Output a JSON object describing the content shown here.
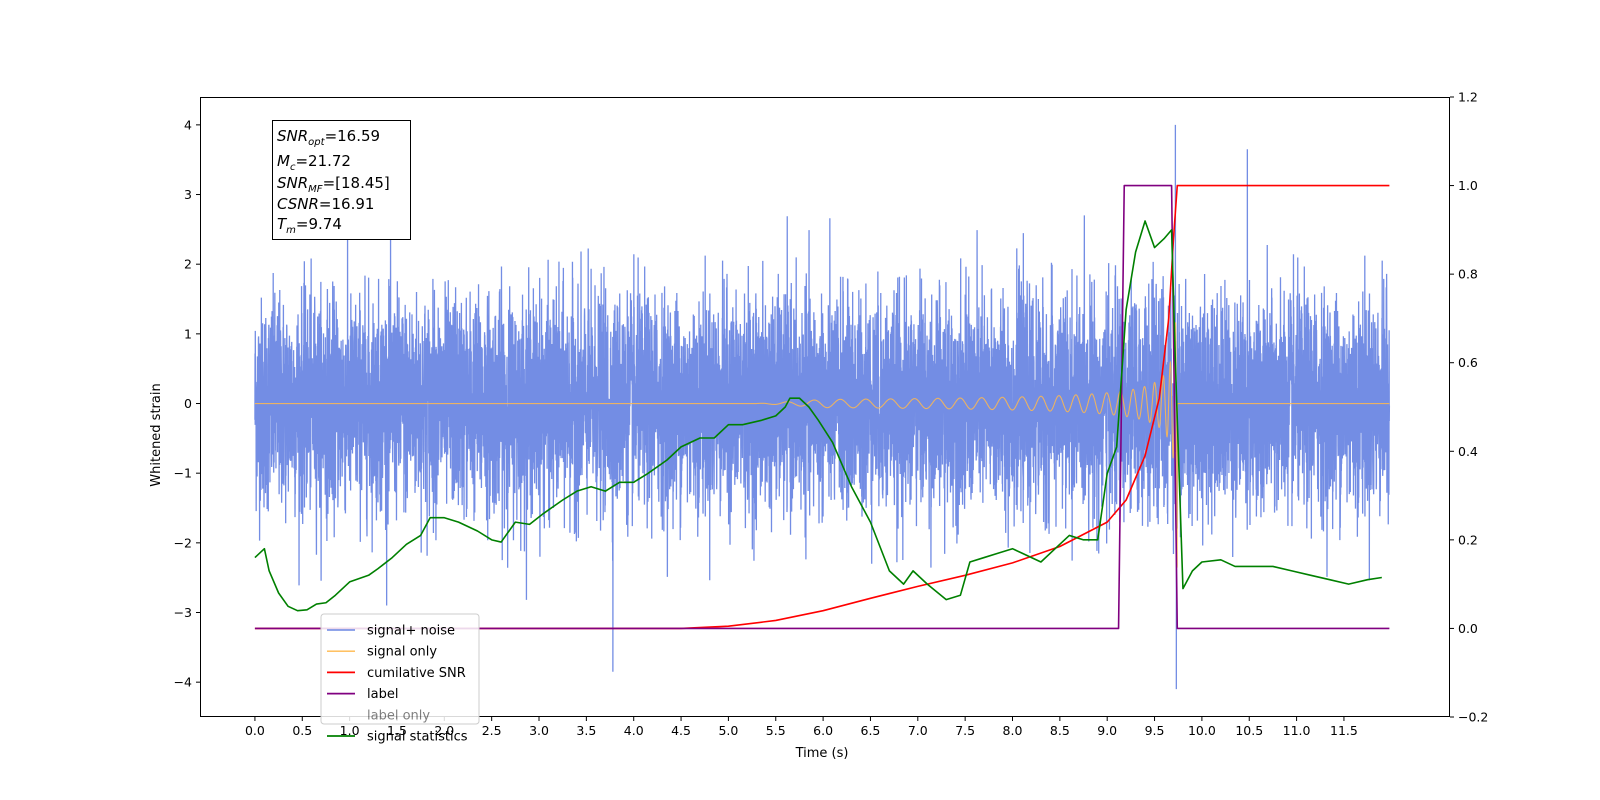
{
  "chart_data": {
    "type": "line",
    "xlabel": "Time (s)",
    "ylabel": "Whitened strain",
    "xlim": [
      -0.58,
      12.62
    ],
    "ylim": [
      -4.5,
      4.4
    ],
    "ylim_right": [
      -0.2,
      1.2
    ],
    "x_ticks": [
      0.0,
      0.5,
      1.0,
      1.5,
      2.0,
      2.5,
      3.0,
      3.5,
      4.0,
      4.5,
      5.0,
      5.5,
      6.0,
      6.5,
      7.0,
      7.5,
      8.0,
      8.5,
      9.0,
      9.5,
      10.0,
      10.5,
      11.0,
      11.5
    ],
    "x_tick_labels": [
      "0.0",
      "0.5",
      "1.0",
      "1.5",
      "2.0",
      "2.5",
      "3.0",
      "3.5",
      "4.0",
      "4.5",
      "5.0",
      "5.5",
      "6.0",
      "6.5",
      "7.0",
      "7.5",
      "8.0",
      "8.5",
      "9.0",
      "9.5",
      "10.0",
      "10.5",
      "11.0",
      "11.5"
    ],
    "y_ticks": [
      -4,
      -3,
      -2,
      -1,
      0,
      1,
      2,
      3,
      4
    ],
    "y_tick_labels": [
      "−4",
      "−3",
      "−2",
      "−1",
      "0",
      "1",
      "2",
      "3",
      "4"
    ],
    "y_ticks_right": [
      -0.2,
      0.0,
      0.2,
      0.4,
      0.6,
      0.8,
      1.0,
      1.2
    ],
    "y_tick_labels_right": [
      "−0.2",
      "0.0",
      "0.2",
      "0.4",
      "0.6",
      "0.8",
      "1.0",
      "1.2"
    ],
    "annotation": {
      "snr_opt": "16.59",
      "mc": "21.72",
      "snr_mf": "[18.45]",
      "csnr": "16.91",
      "tm": "9.74"
    },
    "legend_position": "lower-left",
    "series": [
      {
        "name": "signal+ noise",
        "color": "#6b87e3",
        "axis": "left",
        "description_range": [
          0.0,
          11.98
        ],
        "typical_amplitude": 1.5,
        "outliers": [
          {
            "x": 3.78,
            "y": -3.85
          },
          {
            "x": 9.72,
            "y": 4.0
          },
          {
            "x": 9.73,
            "y": -4.1
          },
          {
            "x": 10.48,
            "y": 3.65
          }
        ]
      },
      {
        "name": "signal only",
        "color": "#ffb84d",
        "axis": "left",
        "merger_time": 9.74
      },
      {
        "name": "cumilative SNR",
        "color": "#ff0000",
        "axis": "right",
        "x": [
          0.0,
          4.0,
          4.5,
          5.0,
          5.5,
          6.0,
          6.5,
          7.0,
          7.5,
          8.0,
          8.5,
          9.0,
          9.2,
          9.4,
          9.55,
          9.65,
          9.7,
          9.74,
          11.98
        ],
        "y": [
          0.0,
          0.0,
          0.0,
          0.005,
          0.018,
          0.04,
          0.068,
          0.095,
          0.12,
          0.148,
          0.185,
          0.24,
          0.29,
          0.39,
          0.52,
          0.7,
          0.88,
          1.0,
          1.0
        ]
      },
      {
        "name": "label",
        "color": "#800080",
        "axis": "right",
        "x": [
          0.0,
          9.12,
          9.18,
          9.68,
          9.74,
          11.98
        ],
        "y": [
          0.0,
          0.0,
          1.0,
          1.0,
          0.0,
          0.0
        ]
      },
      {
        "name": "label only",
        "color": "#ffb84d",
        "axis": "right",
        "hidden": true
      },
      {
        "name": "signal statistics",
        "color": "#008000",
        "axis": "right",
        "x": [
          0.0,
          0.1,
          0.15,
          0.25,
          0.35,
          0.45,
          0.55,
          0.65,
          0.75,
          0.85,
          1.0,
          1.2,
          1.3,
          1.45,
          1.6,
          1.75,
          1.85,
          2.0,
          2.15,
          2.35,
          2.5,
          2.6,
          2.75,
          2.9,
          3.05,
          3.25,
          3.4,
          3.55,
          3.7,
          3.85,
          4.0,
          4.15,
          4.35,
          4.5,
          4.7,
          4.85,
          5.0,
          5.15,
          5.35,
          5.5,
          5.6,
          5.65,
          5.75,
          5.85,
          5.95,
          6.1,
          6.3,
          6.5,
          6.7,
          6.85,
          6.95,
          7.1,
          7.3,
          7.45,
          7.55,
          7.7,
          7.85,
          8.0,
          8.1,
          8.3,
          8.45,
          8.6,
          8.75,
          8.9,
          9.0,
          9.1,
          9.2,
          9.3,
          9.4,
          9.5,
          9.6,
          9.68,
          9.72,
          9.8,
          9.9,
          10.0,
          10.2,
          10.35,
          10.55,
          10.75,
          10.95,
          11.15,
          11.35,
          11.55,
          11.75,
          11.9
        ],
        "y": [
          0.16,
          0.18,
          0.13,
          0.08,
          0.05,
          0.04,
          0.042,
          0.055,
          0.058,
          0.075,
          0.105,
          0.12,
          0.135,
          0.16,
          0.19,
          0.21,
          0.25,
          0.25,
          0.24,
          0.22,
          0.2,
          0.195,
          0.24,
          0.235,
          0.26,
          0.29,
          0.31,
          0.32,
          0.31,
          0.33,
          0.33,
          0.35,
          0.38,
          0.41,
          0.43,
          0.43,
          0.46,
          0.46,
          0.47,
          0.48,
          0.5,
          0.52,
          0.52,
          0.5,
          0.47,
          0.42,
          0.32,
          0.24,
          0.13,
          0.1,
          0.13,
          0.1,
          0.065,
          0.075,
          0.15,
          0.16,
          0.17,
          0.18,
          0.17,
          0.15,
          0.18,
          0.21,
          0.2,
          0.2,
          0.35,
          0.41,
          0.72,
          0.85,
          0.92,
          0.86,
          0.88,
          0.9,
          0.6,
          0.09,
          0.13,
          0.15,
          0.155,
          0.14,
          0.14,
          0.14,
          0.13,
          0.12,
          0.11,
          0.1,
          0.11,
          0.115
        ]
      }
    ]
  }
}
